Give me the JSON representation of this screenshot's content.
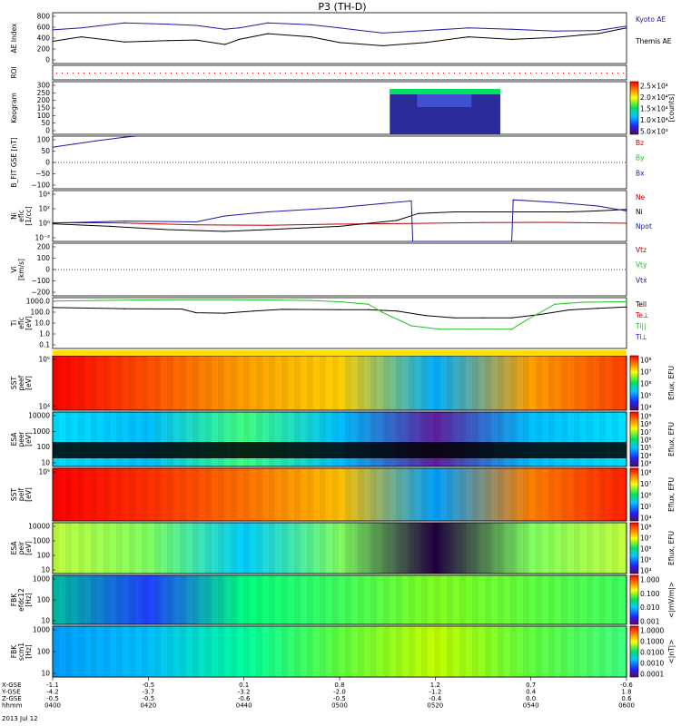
{
  "title": "P3 (TH-D)",
  "date": "2013 Jul 12",
  "chart_data": [
    {
      "type": "line",
      "id": "ae",
      "ylabel": "AE Index",
      "ylim": [
        0,
        800
      ],
      "yticks": [
        "800",
        "600",
        "400",
        "200",
        "0"
      ],
      "series": [
        {
          "name": "Kyoto AE",
          "color": "#1a1aa6",
          "x_hours": [
            0,
            0.2,
            0.5,
            0.8,
            1.0,
            1.2,
            1.3,
            1.5,
            1.8,
            2.0,
            2.3,
            2.6,
            2.9,
            3.2,
            3.5,
            3.8,
            4.0
          ],
          "values": [
            530,
            560,
            640,
            620,
            600,
            540,
            560,
            640,
            610,
            560,
            480,
            520,
            560,
            540,
            510,
            520,
            590
          ]
        },
        {
          "name": "Themis AE",
          "color": "#000000",
          "x_hours": [
            0,
            0.2,
            0.5,
            0.8,
            1.0,
            1.2,
            1.3,
            1.5,
            1.8,
            2.0,
            2.3,
            2.6,
            2.9,
            3.2,
            3.5,
            3.8,
            4.0
          ],
          "values": [
            350,
            420,
            340,
            360,
            370,
            300,
            380,
            470,
            420,
            330,
            280,
            330,
            420,
            380,
            410,
            470,
            560
          ]
        }
      ]
    },
    {
      "type": "marker",
      "id": "roi",
      "ylabel": "ROI"
    },
    {
      "type": "heatmap",
      "id": "keogram",
      "ylabel": "Keogram",
      "ylim": [
        0,
        300
      ],
      "yticks": [
        "300",
        "250",
        "200",
        "150",
        "100",
        "50",
        "0"
      ],
      "x_range_hours": [
        2.35,
        3.12
      ],
      "colorbar": {
        "label": "[counts]",
        "ticks": [
          "2.5×10⁴",
          "2.0×10⁴",
          "1.5×10⁴",
          "1.0×10⁴",
          "5.0×10³"
        ]
      }
    },
    {
      "type": "line",
      "id": "bfield",
      "ylabel": "B_FIT GSE [nT]",
      "ylim": [
        -100,
        100
      ],
      "yticks": [
        "100",
        "50",
        "0",
        "−50",
        "−100"
      ],
      "series": [
        {
          "name": "Bz",
          "color": "#c00000",
          "x_hours": [],
          "values": []
        },
        {
          "name": "By",
          "color": "#1fbf1f",
          "x_hours": [],
          "values": []
        },
        {
          "name": "Bx",
          "color": "#1a1aa6",
          "x_hours": [
            0,
            0.05,
            0.15,
            0.3,
            0.5,
            0.58
          ],
          "values": [
            58,
            62,
            70,
            82,
            96,
            100
          ]
        }
      ]
    },
    {
      "type": "line",
      "id": "density",
      "ylabel": "Ni",
      "ylabel2": "eflc",
      "ylabel3": "[1/cc]",
      "scale": "log",
      "ylim": [
        0.01,
        10000
      ],
      "yticks": [
        "10⁴",
        "10²",
        "10⁰",
        "10⁻²"
      ],
      "series": [
        {
          "name": "Ne",
          "color": "#c00000",
          "x_hours": [
            0,
            0.5,
            1,
            1.5,
            2,
            2.5,
            3,
            3.5,
            4
          ],
          "values": [
            1.6,
            1.5,
            0.9,
            0.8,
            1.1,
            1.3,
            1.7,
            1.8,
            1.4
          ]
        },
        {
          "name": "Ni",
          "color": "#000000",
          "x_hours": [
            0,
            0.4,
            0.8,
            1.2,
            1.6,
            2.0,
            2.4,
            2.55,
            2.8,
            3.0,
            3.2,
            3.4,
            3.6,
            3.8,
            4.0
          ],
          "values": [
            1.2,
            0.6,
            0.25,
            0.15,
            0.3,
            0.6,
            3,
            20,
            30,
            30,
            30,
            30,
            30,
            40,
            60
          ]
        },
        {
          "name": "Npot",
          "color": "#1a1aa6",
          "x_hours": [
            0,
            0.5,
            1.0,
            1.2,
            1.5,
            2.0,
            2.3,
            2.5,
            2.51,
            3.2,
            3.21,
            3.5,
            3.8,
            4.0
          ],
          "values": [
            1.5,
            2.5,
            2,
            10,
            30,
            100,
            300,
            600,
            0.01,
            0.01,
            800,
            400,
            150,
            40
          ]
        }
      ]
    },
    {
      "type": "line",
      "id": "velocity",
      "ylabel": "Vi",
      "ylabel3": "[km/s]",
      "ylim": [
        -200,
        200
      ],
      "yticks": [
        "200",
        "100",
        "0",
        "−100",
        "−200"
      ],
      "series": [
        {
          "name": "Vtz",
          "color": "#c00000",
          "x_hours": [],
          "values": []
        },
        {
          "name": "Vty",
          "color": "#1fbf1f",
          "x_hours": [],
          "values": []
        },
        {
          "name": "Vtx",
          "color": "#1a1aa6",
          "x_hours": [],
          "values": []
        }
      ]
    },
    {
      "type": "line",
      "id": "temperature",
      "ylabel": "Ti",
      "ylabel2": "eflc",
      "ylabel3": "[eV]",
      "scale": "log",
      "ylim": [
        0.1,
        3000
      ],
      "yticks": [
        "1000.0",
        "100.0",
        "10.0",
        "1.0",
        "0.1"
      ],
      "series": [
        {
          "name": "Tell",
          "color": "#000000",
          "x_hours": [
            0,
            0.5,
            0.9,
            1.0,
            1.2,
            1.4,
            1.6,
            2.0,
            2.2,
            2.4,
            2.6,
            2.8,
            3.0,
            3.2,
            3.4,
            3.6,
            3.8,
            4.0
          ],
          "values": [
            400,
            320,
            300,
            140,
            130,
            200,
            280,
            260,
            260,
            200,
            80,
            50,
            50,
            50,
            100,
            250,
            350,
            450
          ]
        },
        {
          "name": "Te⊥",
          "color": "#c00000",
          "x_hours": [],
          "values": []
        },
        {
          "name": "Ti||",
          "color": "#1fbf1f",
          "x_hours": [
            0,
            0.3,
            0.6,
            0.9,
            1.2,
            1.5,
            1.8,
            2.0,
            2.2,
            2.3,
            2.5,
            2.7,
            2.9,
            3.1,
            3.2,
            3.3,
            3.5,
            3.7,
            4.0
          ],
          "values": [
            1500,
            1700,
            1900,
            2000,
            2000,
            1900,
            1700,
            1300,
            800,
            150,
            10,
            5,
            5,
            5,
            5,
            30,
            800,
            1200,
            1300
          ]
        },
        {
          "name": "Ti⊥",
          "color": "#1a1aa6",
          "x_hours": [],
          "values": []
        }
      ]
    },
    {
      "type": "heatmap",
      "id": "sst_e",
      "ylabel": "SST",
      "ylabel2": "peef",
      "ylabel3": "[eV]",
      "yticks": [
        "10⁵",
        "10⁴"
      ],
      "colorbar": {
        "label": "Eflux, EFU",
        "ticks": [
          "10⁸",
          "10⁷",
          "10⁶",
          "10⁵",
          "10⁴"
        ]
      }
    },
    {
      "type": "heatmap",
      "id": "esa_e",
      "ylabel": "ESA",
      "ylabel2": "peer",
      "ylabel3": "[eV]",
      "yticks": [
        "10000",
        "1000",
        "100",
        "10"
      ],
      "colorbar": {
        "label": "Eflux, EFU",
        "ticks": [
          "10⁹",
          "10⁸",
          "10⁷",
          "10⁶",
          "10⁵",
          "10⁴",
          "10³"
        ]
      }
    },
    {
      "type": "heatmap",
      "id": "sst_i",
      "ylabel": "SST",
      "ylabel2": "peif",
      "ylabel3": "[eV]",
      "yticks": [
        "10⁵"
      ],
      "colorbar": {
        "label": "Eflux, EFU",
        "ticks": [
          "10⁸",
          "10⁷",
          "10⁶",
          "10⁵",
          "10⁴"
        ]
      }
    },
    {
      "type": "heatmap",
      "id": "esa_i",
      "ylabel": "ESA",
      "ylabel2": "peir",
      "ylabel3": "[eV]",
      "yticks": [
        "10000",
        "1000",
        "100",
        "10"
      ],
      "colorbar": {
        "label": "Eflux, EFU",
        "ticks": [
          "10⁸",
          "10⁷",
          "10⁶",
          "10⁵",
          "10⁴"
        ]
      }
    },
    {
      "type": "heatmap",
      "id": "fbk_e",
      "ylabel": "FBK",
      "ylabel2": "efdc12",
      "ylabel3": "[Hz]",
      "yticks": [
        "1000",
        "100",
        "10"
      ],
      "colorbar": {
        "label": "<|mV/m|>",
        "ticks": [
          "1.000",
          "0.100",
          "0.010",
          "0.001"
        ]
      }
    },
    {
      "type": "heatmap",
      "id": "fbk_b",
      "ylabel": "FBK",
      "ylabel2": "scm1",
      "ylabel3": "[Hz]",
      "yticks": [
        "1000",
        "100",
        "10"
      ],
      "colorbar": {
        "label": "<|nT|>",
        "ticks": [
          "1.0000",
          "0.1000",
          "0.0100",
          "0.0010",
          "0.0001"
        ]
      }
    }
  ],
  "xaxis": {
    "row_labels": [
      "X-GSE",
      "Y-GSE",
      "Z-GSE",
      "hhmm"
    ],
    "columns": [
      [
        "-1.1",
        "-4.2",
        "-0.5",
        "0400"
      ],
      [
        "-0.5",
        "-3.7",
        "-0.5",
        "0420"
      ],
      [
        "0.1",
        "-3.2",
        "-0.6",
        "0440"
      ],
      [
        "0.8",
        "-2.0",
        "-0.5",
        "0500"
      ],
      [
        "1.2",
        "-1.2",
        "-0.4",
        "0520"
      ],
      [
        "0.7",
        "0.4",
        "0.0",
        "0540"
      ],
      [
        "-0.6",
        "1.8",
        "0.6",
        "0600"
      ]
    ]
  }
}
